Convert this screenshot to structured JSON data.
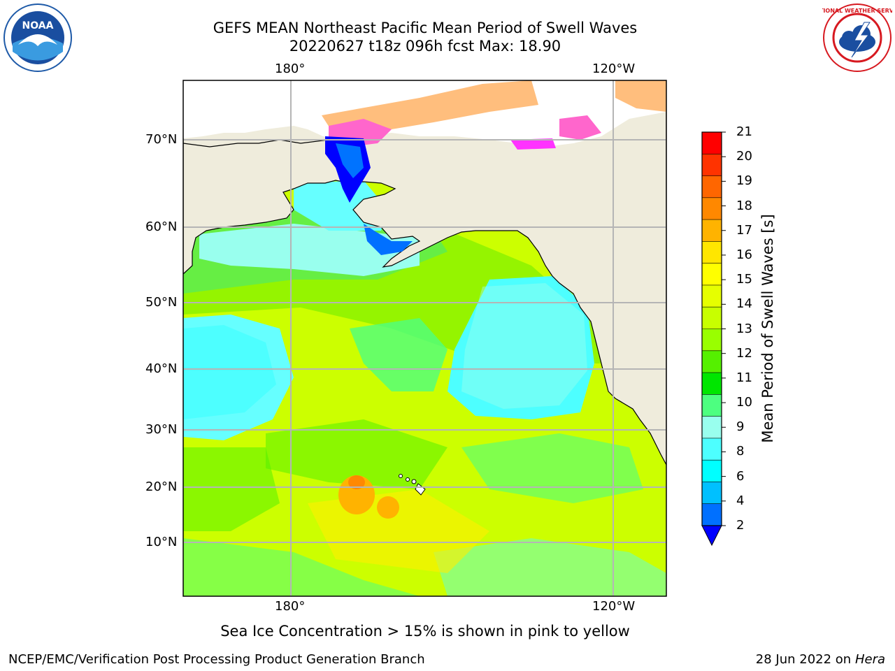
{
  "title": {
    "line1": "GEFS MEAN Northeast Pacific Mean Period of Swell Waves",
    "line2": "20220627 t18z 096h fcst   Max: 18.90"
  },
  "logos": {
    "left": "NOAA",
    "right": "NATIONAL WEATHER SERVICE"
  },
  "map": {
    "lon_ticks_top": [
      "180°",
      "120°W"
    ],
    "lon_ticks_bottom": [
      "180°",
      "120°W"
    ],
    "lat_ticks": [
      "70°N",
      "60°N",
      "50°N",
      "40°N",
      "30°N",
      "20°N",
      "10°N"
    ],
    "land_color": "#efecdc",
    "grid_color": "#b5b5b5"
  },
  "colorbar": {
    "title": "Mean Period of Swell Waves [s]",
    "levels": [
      "21",
      "20",
      "19",
      "18",
      "17",
      "16",
      "15",
      "14",
      "13",
      "12",
      "11",
      "10",
      "9",
      "8",
      "6",
      "4",
      "2"
    ],
    "colors_top_to_bottom": [
      "#ff0000",
      "#ff3300",
      "#ff6600",
      "#ff8800",
      "#ffb300",
      "#ffe600",
      "#ffff00",
      "#e6ff00",
      "#c8ff00",
      "#99ff00",
      "#55f000",
      "#00e600",
      "#4dff80",
      "#99ffee",
      "#4dffff",
      "#00ffff",
      "#00c0ff",
      "#0070ff"
    ],
    "extend_color": "#0000ff"
  },
  "note": "Sea Ice Concentration > 15% is shown in pink to yellow",
  "footer": {
    "left": "NCEP/EMC/Verification Post Processing Product Generation Branch",
    "right_date": "28 Jun 2022 on",
    "right_host": "Hera"
  }
}
